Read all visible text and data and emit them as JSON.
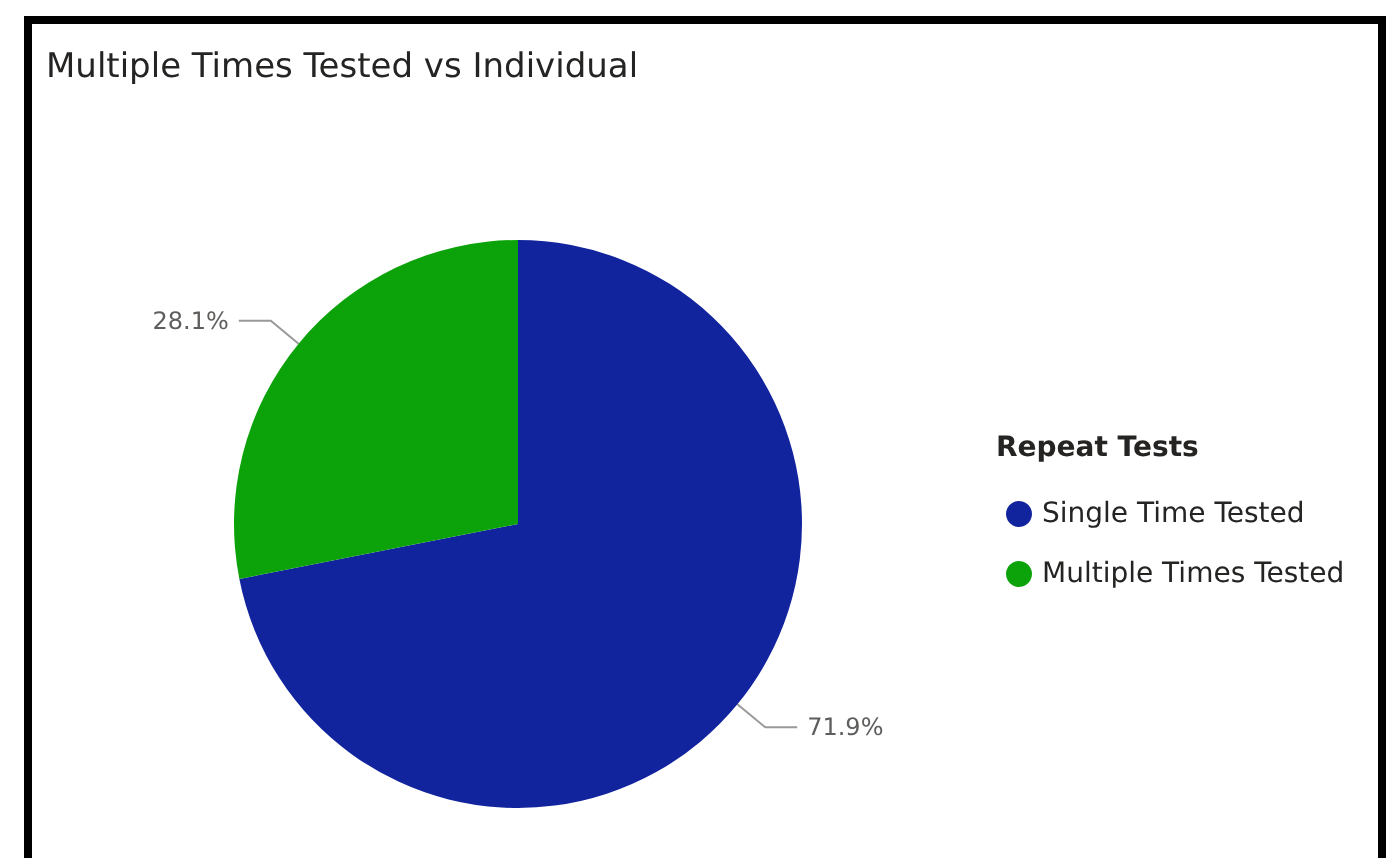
{
  "chart_data": {
    "type": "pie",
    "title": "Multiple Times Tested vs Individual",
    "categories": [
      "Single Time Tested",
      "Multiple Times Tested"
    ],
    "values": [
      71.9,
      28.1
    ],
    "colors": [
      "#12239e",
      "#0ca30a"
    ],
    "value_labels": [
      "71.9%",
      "28.1%"
    ],
    "legend_title": "Repeat Tests",
    "legend": "right"
  }
}
